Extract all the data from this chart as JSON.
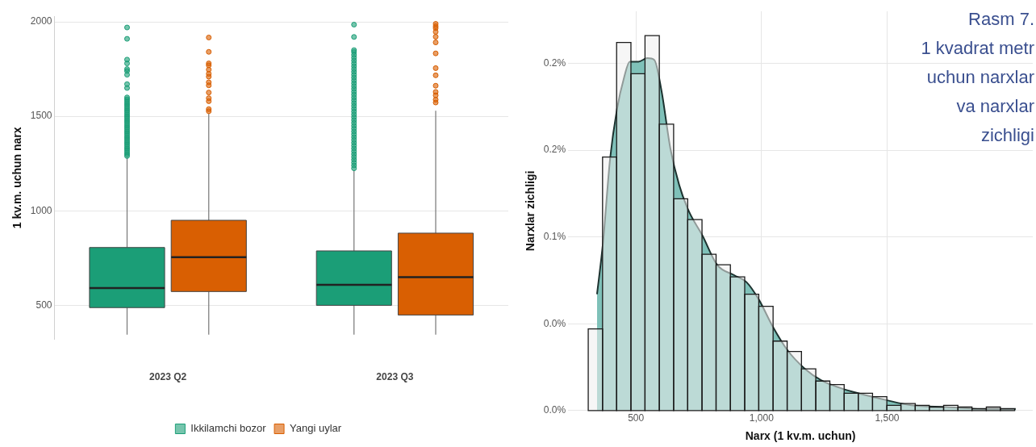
{
  "chart_data": [
    {
      "type": "box",
      "categories": [
        "2023 Q2",
        "2023 Q3"
      ],
      "ylabel": "1 kv.m. uchun narx",
      "ylim": [
        320,
        2030
      ],
      "yticks": [
        500,
        1000,
        1500,
        2000
      ],
      "grid": "y",
      "legend": "bottom",
      "series": [
        {
          "name": "Ikkilamchi bozor",
          "color": "#1b9e77",
          "boxes": [
            {
              "low": 345,
              "q1": 488,
              "median": 591,
              "q3": 806,
              "high": 1285,
              "outliers": [
                1290,
                1300,
                1310,
                1320,
                1330,
                1340,
                1350,
                1360,
                1370,
                1380,
                1390,
                1400,
                1410,
                1420,
                1430,
                1440,
                1450,
                1460,
                1470,
                1480,
                1490,
                1500,
                1510,
                1520,
                1530,
                1540,
                1550,
                1560,
                1570,
                1580,
                1590,
                1600,
                1650,
                1670,
                1720,
                1740,
                1750,
                1780,
                1800,
                1910,
                1970
              ]
            },
            {
              "low": 345,
              "q1": 500,
              "median": 609,
              "q3": 788,
              "high": 1217,
              "outliers": [
                1225,
                1240,
                1255,
                1270,
                1285,
                1300,
                1315,
                1330,
                1345,
                1360,
                1375,
                1390,
                1405,
                1420,
                1435,
                1450,
                1465,
                1480,
                1495,
                1510,
                1525,
                1540,
                1555,
                1570,
                1585,
                1600,
                1615,
                1630,
                1645,
                1660,
                1675,
                1690,
                1705,
                1720,
                1735,
                1750,
                1765,
                1780,
                1795,
                1810,
                1825,
                1840,
                1850,
                1920,
                1985
              ]
            }
          ]
        },
        {
          "name": "Yangi uylar",
          "color": "#d95f02",
          "boxes": [
            {
              "low": 345,
              "q1": 573,
              "median": 755,
              "q3": 950,
              "high": 1515,
              "outliers": [
                1527,
                1538,
                1580,
                1596,
                1626,
                1664,
                1680,
                1710,
                1725,
                1747,
                1770,
                1780,
                1841,
                1917
              ]
            },
            {
              "low": 345,
              "q1": 449,
              "median": 649,
              "q3": 882,
              "high": 1530,
              "outliers": [
                1573,
                1588,
                1611,
                1629,
                1662,
                1717,
                1755,
                1833,
                1891,
                1921,
                1947,
                1967,
                1977,
                1989
              ]
            }
          ]
        }
      ]
    },
    {
      "type": "histogram",
      "title": "Rasm 7.\n1 kvadrat metr\nuchun narxlar\nva narxlar\nzichligi",
      "xlabel": "Narx (1 kv.m. uchun)",
      "ylabel": "Narxlar zichligi",
      "xlim": [
        230,
        2080
      ],
      "ylim": [
        0,
        0.23
      ],
      "xticks": [
        {
          "value": 500,
          "label": "500"
        },
        {
          "value": 1000,
          "label": "1,000"
        },
        {
          "value": 1500,
          "label": "1,500"
        }
      ],
      "yticks": [
        {
          "value": 0,
          "label": "0.0%"
        },
        {
          "value": 0.05,
          "label": "0.0%"
        },
        {
          "value": 0.1,
          "label": "0.1%"
        },
        {
          "value": 0.15,
          "label": "0.2%"
        },
        {
          "value": 0.2,
          "label": "0.2%"
        }
      ],
      "grid": true,
      "series": [
        {
          "type": "histogram",
          "color": "#efefef",
          "bins": [
            310,
            367,
            423,
            480,
            536,
            593,
            650,
            706,
            763,
            819,
            876,
            933,
            989,
            1046,
            1102,
            1159,
            1216,
            1272,
            1329,
            1385,
            1442,
            1499,
            1555,
            1612,
            1668,
            1725,
            1782,
            1838,
            1895,
            1951,
            2008
          ],
          "values": [
            0.047,
            0.146,
            0.212,
            0.194,
            0.216,
            0.165,
            0.122,
            0.11,
            0.09,
            0.084,
            0.077,
            0.067,
            0.06,
            0.04,
            0.034,
            0.024,
            0.017,
            0.015,
            0.01,
            0.01,
            0.008,
            0.003,
            0.004,
            0.003,
            0.002,
            0.003,
            0.002,
            0.001,
            0.002,
            0.001
          ]
        },
        {
          "type": "area",
          "color": "#7fc1b9",
          "x": [
            345,
            369,
            397,
            425,
            453,
            475,
            510,
            545,
            573,
            602,
            637,
            672,
            710,
            764,
            823,
            891,
            940,
            989,
            1046,
            1102,
            1173,
            1243,
            1314,
            1384,
            1497,
            1596,
            1737,
            1878,
            2012
          ],
          "values": [
            0.067,
            0.097,
            0.145,
            0.174,
            0.192,
            0.201,
            0.201,
            0.203,
            0.202,
            0.184,
            0.151,
            0.13,
            0.115,
            0.101,
            0.084,
            0.078,
            0.074,
            0.064,
            0.048,
            0.035,
            0.024,
            0.017,
            0.013,
            0.01,
            0.006,
            0.003,
            0.002,
            0.001,
            0.001
          ]
        }
      ]
    }
  ]
}
